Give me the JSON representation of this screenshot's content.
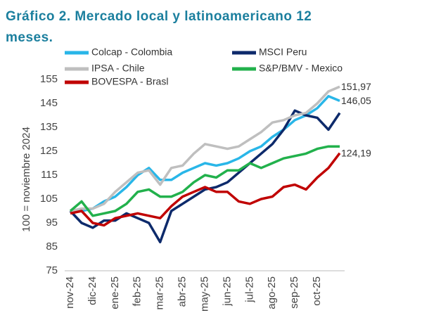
{
  "chart_data": {
    "type": "line",
    "title": "Gráfico 2. Mercado local y latinoamericano 12 meses.",
    "ylabel": "100 = noviembre 2024",
    "categories": [
      "nov-24",
      null,
      "dic-24",
      null,
      "ene-25",
      null,
      "feb-25",
      null,
      "mar-25",
      null,
      "abr-25",
      null,
      "may-25",
      null,
      "jun-25",
      null,
      "jul-25",
      null,
      "ago-25",
      null,
      "sep-25",
      null,
      "oct-25",
      null,
      null
    ],
    "ylim": [
      75,
      155
    ],
    "yticks": [
      75,
      85,
      95,
      105,
      115,
      125,
      135,
      145,
      155
    ],
    "series": [
      {
        "name": "Colcap - Colombia",
        "color": "#29b6e8",
        "values": [
          100,
          100,
          101,
          104,
          106,
          110,
          115,
          118,
          113,
          113,
          116,
          118,
          120,
          119,
          120,
          122,
          125,
          127,
          131,
          134,
          138,
          140,
          143,
          148,
          146.05
        ],
        "value_labels": [
          null,
          null,
          null,
          null,
          null,
          null,
          null,
          null,
          null,
          null,
          null,
          null,
          null,
          null,
          null,
          null,
          null,
          null,
          null,
          null,
          null,
          null,
          null,
          null,
          "146,05"
        ]
      },
      {
        "name": "MSCI Peru",
        "color": "#0d2a6b",
        "values": [
          100,
          95,
          93,
          96,
          96,
          99,
          97,
          95,
          87,
          100,
          103,
          106,
          109,
          110,
          112,
          116,
          120,
          124,
          128,
          134,
          142,
          140,
          139,
          134,
          141
        ]
      },
      {
        "name": "IPSA - Chile",
        "color": "#bfbfbf",
        "values": [
          100,
          101,
          101,
          103,
          108,
          112,
          116,
          117,
          111,
          118,
          119,
          124,
          128,
          127,
          126,
          127,
          130,
          133,
          137,
          138,
          140,
          141,
          145,
          150,
          151.97
        ],
        "value_labels": [
          null,
          null,
          null,
          null,
          null,
          null,
          null,
          null,
          null,
          null,
          null,
          null,
          null,
          null,
          null,
          null,
          null,
          null,
          null,
          null,
          null,
          null,
          null,
          null,
          "151,97"
        ]
      },
      {
        "name": "S&P/BMV - Mexico",
        "color": "#22b14c",
        "values": [
          100,
          104,
          98,
          99,
          100,
          103,
          108,
          109,
          106,
          106,
          108,
          112,
          115,
          114,
          117,
          117,
          120,
          118,
          120,
          122,
          123,
          124,
          126,
          127,
          127
        ]
      },
      {
        "name": "BOVESPA - Brasl",
        "color": "#c00000",
        "values": [
          99,
          100,
          95,
          94,
          97,
          98,
          99,
          98,
          97,
          102,
          106,
          108,
          110,
          108,
          108,
          104,
          103,
          105,
          106,
          110,
          111,
          109,
          114,
          118,
          124.19
        ],
        "value_labels": [
          null,
          null,
          null,
          null,
          null,
          null,
          null,
          null,
          null,
          null,
          null,
          null,
          null,
          null,
          null,
          null,
          null,
          null,
          null,
          null,
          null,
          null,
          null,
          null,
          "124,19"
        ]
      }
    ]
  }
}
